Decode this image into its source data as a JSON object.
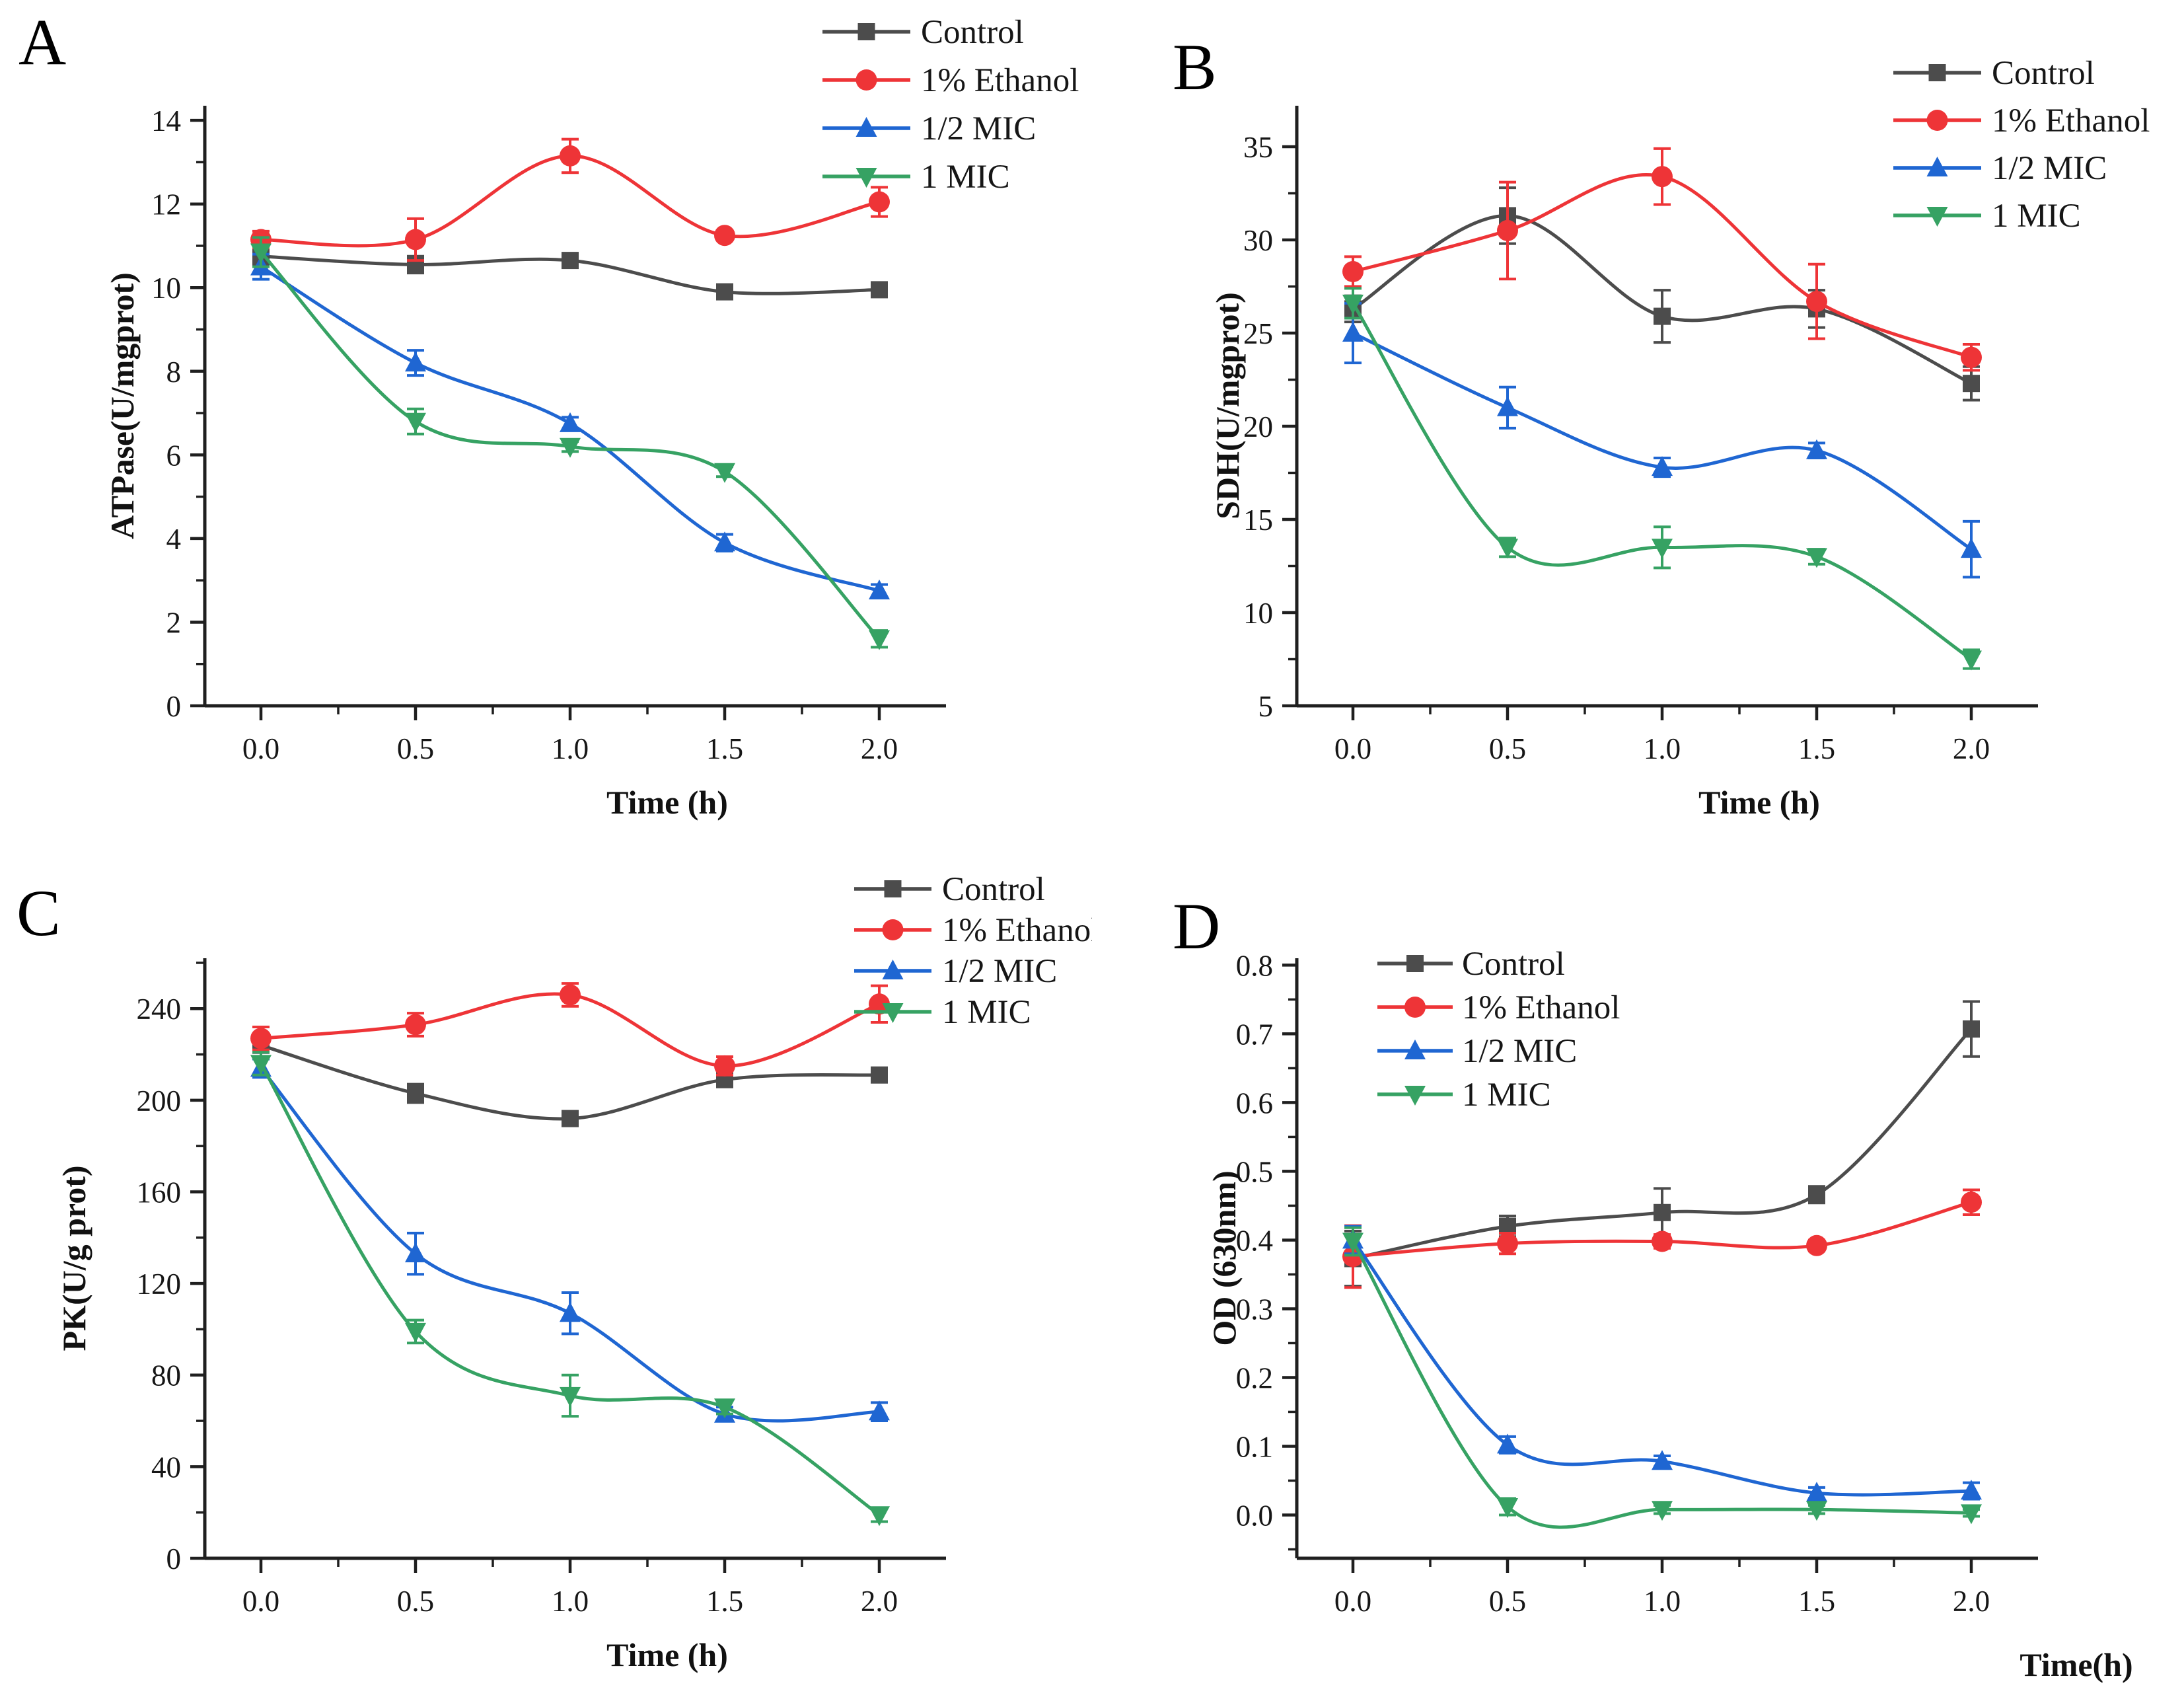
{
  "colors": {
    "control": "#4c4c4c",
    "ethanol": "#ee3437",
    "half_mic": "#1f66d2",
    "one_mic": "#36a263",
    "axis": "#1f1f1f",
    "background": "#ffffff"
  },
  "legend_labels": [
    "Control",
    "1% Ethanol",
    "1/2 MIC",
    "1 MIC"
  ],
  "chart_data": [
    {
      "panel": "A",
      "type": "line",
      "title": "",
      "xlabel": "Time (h)",
      "ylabel": "ATPase(U/mgprot)",
      "x": [
        0.0,
        0.5,
        1.0,
        1.5,
        2.0
      ],
      "xtick_labels": [
        "0.0",
        "0.5",
        "1.0",
        "1.5",
        "2.0"
      ],
      "ylim": [
        0,
        14.35
      ],
      "yticks": [
        0,
        2,
        4,
        6,
        8,
        10,
        12,
        14
      ],
      "ytick_labels": [
        "0",
        "2",
        "4",
        "6",
        "8",
        "10",
        "12",
        "14"
      ],
      "y_minor_step": 1,
      "grid": false,
      "legend_position": "outside-top-right",
      "series": [
        {
          "name": "Control",
          "marker": "square",
          "color": "#4c4c4c",
          "values": [
            10.75,
            10.55,
            10.65,
            9.9,
            9.95
          ],
          "errors": [
            0.2,
            0.2,
            0.15,
            0.1,
            0.12
          ]
        },
        {
          "name": "1% Ethanol",
          "marker": "circle",
          "color": "#ee3437",
          "values": [
            11.15,
            11.15,
            13.15,
            11.25,
            12.05
          ],
          "errors": [
            0.2,
            0.5,
            0.4,
            0.1,
            0.35
          ]
        },
        {
          "name": "1/2 MIC",
          "marker": "triangle-up",
          "color": "#1f66d2",
          "values": [
            10.5,
            8.2,
            6.75,
            3.9,
            2.75
          ],
          "errors": [
            0.3,
            0.3,
            0.15,
            0.2,
            0.15
          ]
        },
        {
          "name": "1 MIC",
          "marker": "triangle-down",
          "color": "#36a263",
          "values": [
            10.85,
            6.8,
            6.2,
            5.6,
            1.6
          ],
          "errors": [
            0.35,
            0.3,
            0.12,
            0.12,
            0.2
          ]
        }
      ]
    },
    {
      "panel": "B",
      "type": "line",
      "title": "",
      "xlabel": "Time (h)",
      "ylabel": "SDH(U/mgprot)",
      "x": [
        0.0,
        0.5,
        1.0,
        1.5,
        2.0
      ],
      "xtick_labels": [
        "0.0",
        "0.5",
        "1.0",
        "1.5",
        "2.0"
      ],
      "ylim": [
        5,
        37.2
      ],
      "yticks": [
        5,
        10,
        15,
        20,
        25,
        30,
        35
      ],
      "ytick_labels": [
        "5",
        "10",
        "15",
        "20",
        "25",
        "30",
        "35"
      ],
      "y_minor_step": 2.5,
      "grid": false,
      "legend_position": "outside-top-right",
      "series": [
        {
          "name": "Control",
          "marker": "square",
          "color": "#4c4c4c",
          "values": [
            26.3,
            31.3,
            25.9,
            26.3,
            22.3
          ],
          "errors": [
            0.7,
            1.5,
            1.4,
            1.0,
            0.9
          ]
        },
        {
          "name": "1% Ethanol",
          "marker": "circle",
          "color": "#ee3437",
          "values": [
            28.3,
            30.5,
            33.4,
            26.7,
            23.7
          ],
          "errors": [
            0.8,
            2.6,
            1.5,
            2.0,
            0.7
          ]
        },
        {
          "name": "1/2 MIC",
          "marker": "triangle-up",
          "color": "#1f66d2",
          "values": [
            25.0,
            21.0,
            17.8,
            18.7,
            13.4
          ],
          "errors": [
            1.6,
            1.1,
            0.5,
            0.4,
            1.5
          ]
        },
        {
          "name": "1 MIC",
          "marker": "triangle-down",
          "color": "#36a263",
          "values": [
            26.6,
            13.5,
            13.5,
            13.0,
            7.5
          ],
          "errors": [
            0.8,
            0.5,
            1.1,
            0.4,
            0.5
          ]
        }
      ]
    },
    {
      "panel": "C",
      "type": "line",
      "title": "",
      "xlabel": "Time (h)",
      "ylabel": "PK(U/g prot)",
      "x": [
        0.0,
        0.5,
        1.0,
        1.5,
        2.0
      ],
      "xtick_labels": [
        "0.0",
        "0.5",
        "1.0",
        "1.5",
        "2.0"
      ],
      "ylim": [
        0,
        262
      ],
      "yticks": [
        0,
        40,
        80,
        120,
        160,
        200,
        240
      ],
      "ytick_labels": [
        "0",
        "40",
        "80",
        "120",
        "160",
        "200",
        "240"
      ],
      "y_minor_step": 20,
      "grid": false,
      "legend_position": "outside-top-right",
      "series": [
        {
          "name": "Control",
          "marker": "square",
          "color": "#4c4c4c",
          "values": [
            224,
            203,
            192,
            209,
            211
          ],
          "errors": [
            5,
            4,
            3,
            3,
            3
          ]
        },
        {
          "name": "1% Ethanol",
          "marker": "circle",
          "color": "#ee3437",
          "values": [
            227,
            233,
            246,
            215,
            242
          ],
          "errors": [
            5,
            5,
            5,
            4,
            8
          ]
        },
        {
          "name": "1/2 MIC",
          "marker": "triangle-up",
          "color": "#1f66d2",
          "values": [
            214,
            133,
            107,
            63,
            64
          ],
          "errors": [
            4,
            9,
            9,
            3,
            4
          ]
        },
        {
          "name": "1 MIC",
          "marker": "triangle-down",
          "color": "#36a263",
          "values": [
            216,
            99,
            71,
            66,
            19
          ],
          "errors": [
            5,
            5,
            9,
            3,
            3
          ]
        }
      ]
    },
    {
      "panel": "D",
      "type": "line",
      "title": "",
      "xlabel": "Time(h)",
      "ylabel": "OD (630nm)",
      "x": [
        0.0,
        0.5,
        1.0,
        1.5,
        2.0
      ],
      "xtick_labels": [
        "0.0",
        "0.5",
        "1.0",
        "1.5",
        "2.0"
      ],
      "ylim": [
        -0.063,
        0.81
      ],
      "yticks": [
        0.0,
        0.1,
        0.2,
        0.3,
        0.4,
        0.5,
        0.6,
        0.7,
        0.8
      ],
      "ytick_labels": [
        "0.0",
        "0.1",
        "0.2",
        "0.3",
        "0.4",
        "0.5",
        "0.6",
        "0.7",
        "0.8"
      ],
      "y_minor_step": 0.05,
      "grid": false,
      "legend_position": "inside-top-left",
      "series": [
        {
          "name": "Control",
          "marker": "square",
          "color": "#4c4c4c",
          "values": [
            0.373,
            0.42,
            0.44,
            0.466,
            0.707
          ],
          "errors": [
            0.04,
            0.015,
            0.035,
            0.012,
            0.04
          ]
        },
        {
          "name": "1% Ethanol",
          "marker": "circle",
          "color": "#ee3437",
          "values": [
            0.376,
            0.395,
            0.398,
            0.392,
            0.455
          ],
          "errors": [
            0.045,
            0.015,
            0.01,
            0.008,
            0.018
          ]
        },
        {
          "name": "1/2 MIC",
          "marker": "triangle-up",
          "color": "#1f66d2",
          "values": [
            0.4,
            0.102,
            0.078,
            0.032,
            0.035
          ],
          "errors": [
            0.02,
            0.012,
            0.008,
            0.008,
            0.012
          ]
        },
        {
          "name": "1 MIC",
          "marker": "triangle-down",
          "color": "#36a263",
          "values": [
            0.398,
            0.012,
            0.008,
            0.008,
            0.003
          ],
          "errors": [
            0.02,
            0.012,
            0.006,
            0.006,
            0.005
          ]
        }
      ]
    }
  ]
}
